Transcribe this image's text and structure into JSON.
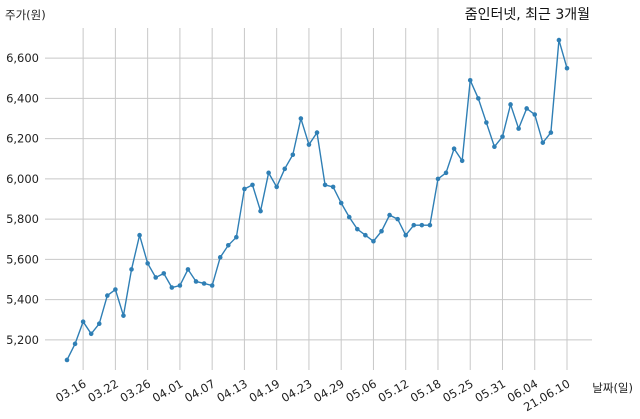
{
  "chart_data": {
    "type": "line",
    "title": "줌인터넷, 최근 3개월",
    "ylabel": "주가(원)",
    "xlabel": "날짜(일)",
    "ylim": [
      5050,
      6750
    ],
    "yticks": [
      5200,
      5400,
      5600,
      5800,
      6000,
      6200,
      6400,
      6600
    ],
    "ytick_labels": [
      "5,200",
      "5,400",
      "5,600",
      "5,800",
      "6,000",
      "6,200",
      "6,400",
      "6,600"
    ],
    "xtick_labels": [
      "03.16",
      "03.22",
      "03.26",
      "04.01",
      "04.07",
      "04.13",
      "04.19",
      "04.23",
      "04.29",
      "05.06",
      "05.12",
      "05.18",
      "05.25",
      "05.31",
      "06.04",
      "21.06.10"
    ],
    "xtick_index": [
      2,
      6,
      10,
      14,
      18,
      22,
      26,
      30,
      34,
      38,
      42,
      46,
      50,
      54,
      58,
      62
    ],
    "grid": true,
    "line_color": "#2f7fb5",
    "series": [
      {
        "values": [
          5100,
          5180,
          5290,
          5230,
          5280,
          5420,
          5450,
          5320,
          5550,
          5720,
          5580,
          5510,
          5530,
          5460,
          5470,
          5550,
          5490,
          5480,
          5470,
          5610,
          5670,
          5710,
          5950,
          5970,
          5840,
          6030,
          5960,
          6050,
          6120,
          6300,
          6170,
          6230,
          5970,
          5960,
          5880,
          5810,
          5750,
          5720,
          5690,
          5740,
          5820,
          5800,
          5720,
          5770,
          5770,
          5770,
          6000,
          6030,
          6150,
          6090,
          6490,
          6400,
          6280,
          6160,
          6210,
          6370,
          6250,
          6350,
          6320,
          6180,
          6230,
          6690,
          6550
        ]
      }
    ]
  }
}
